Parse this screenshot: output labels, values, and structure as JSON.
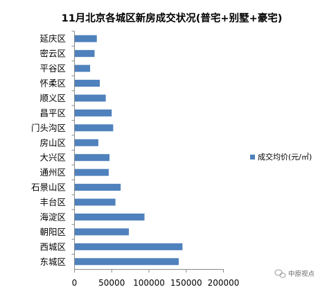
{
  "chart_data": {
    "type": "bar",
    "orientation": "horizontal",
    "title": "11月北京各城区新房成交状况(普宅+别墅+豪宅)",
    "categories": [
      "延庆区",
      "密云区",
      "平谷区",
      "怀柔区",
      "顺义区",
      "昌平区",
      "门头沟区",
      "房山区",
      "大兴区",
      "通州区",
      "石景山区",
      "丰台区",
      "海淀区",
      "朝阳区",
      "西城区",
      "东城区"
    ],
    "series": [
      {
        "name": "成交均价(元/㎡)",
        "color": "#4f81bd",
        "values": [
          30000,
          27000,
          21000,
          34000,
          42000,
          50000,
          52000,
          32000,
          47000,
          46000,
          62000,
          55000,
          94000,
          73000,
          145000,
          140000
        ]
      }
    ],
    "xlim": [
      0,
      200000
    ],
    "xticks": [
      "0",
      "50000",
      "100000",
      "150000",
      "200000"
    ],
    "grid": false,
    "legend_position": "right"
  },
  "watermark": {
    "text": "中原视点",
    "icon": "wechat-icon"
  }
}
